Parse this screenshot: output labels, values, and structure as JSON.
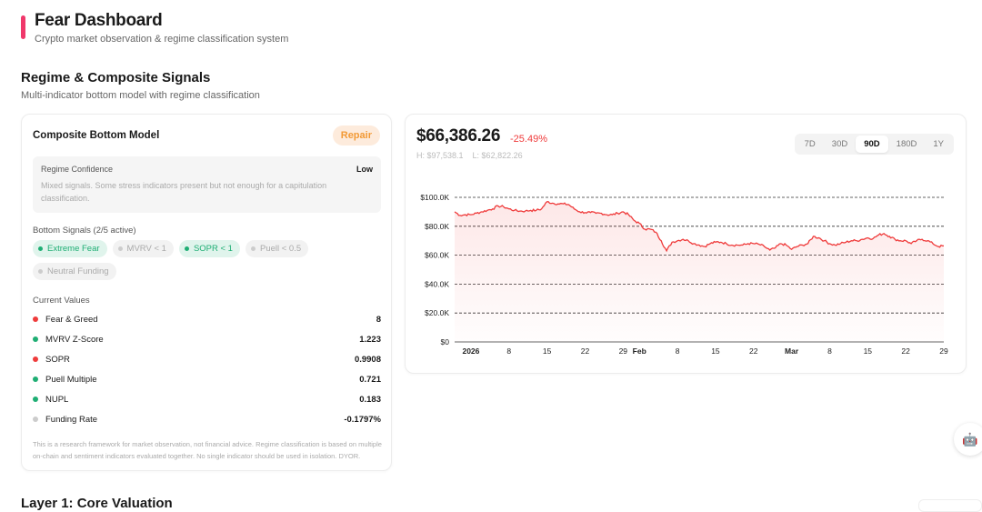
{
  "header": {
    "title": "Fear Dashboard",
    "subtitle": "Crypto market observation & regime classification system",
    "accent": "#f0386b"
  },
  "section": {
    "title": "Regime & Composite Signals",
    "subtitle": "Multi-indicator bottom model with regime classification"
  },
  "model": {
    "title": "Composite Bottom Model",
    "regime": "Repair",
    "confidence_label": "Regime Confidence",
    "confidence_value": "Low",
    "confidence_desc": "Mixed signals. Some stress indicators present but not enough for a capitulation classification.",
    "signals_label": "Bottom Signals (2/5 active)",
    "signals": [
      {
        "label": "Extreme Fear",
        "active": true
      },
      {
        "label": "MVRV < 1",
        "active": false
      },
      {
        "label": "SOPR < 1",
        "active": true
      },
      {
        "label": "Puell < 0.5",
        "active": false
      },
      {
        "label": "Neutral Funding",
        "active": false
      }
    ],
    "values_label": "Current Values",
    "values": [
      {
        "name": "Fear & Greed",
        "value": "8",
        "color": "#ef3b3b"
      },
      {
        "name": "MVRV Z-Score",
        "value": "1.223",
        "color": "#1fae74"
      },
      {
        "name": "SOPR",
        "value": "0.9908",
        "color": "#ef3b3b"
      },
      {
        "name": "Puell Multiple",
        "value": "0.721",
        "color": "#1fae74"
      },
      {
        "name": "NUPL",
        "value": "0.183",
        "color": "#1fae74"
      },
      {
        "name": "Funding Rate",
        "value": "-0.1797%",
        "color": "#cccccc"
      }
    ],
    "disclaimer": "This is a research framework for market observation, not financial advice. Regime classification is based on multiple on-chain and sentiment indicators evaluated together. No single indicator should be used in isolation. DYOR."
  },
  "price": {
    "current": "$66,386.26",
    "change": "-25.49%",
    "high": "H: $97,538.1",
    "low": "L: $62,822.26",
    "ranges": [
      "7D",
      "30D",
      "90D",
      "180D",
      "1Y"
    ],
    "active_range": "90D"
  },
  "chart_data": {
    "type": "area",
    "line_color": "#ef3b3b",
    "grid": "horizontal dashed",
    "ylim": [
      0,
      100
    ],
    "y_ticks": [
      "$0",
      "$20.0K",
      "$40.0K",
      "$60.0K",
      "$80.0K",
      "$100.0K"
    ],
    "x_ticks": [
      {
        "date": "2026-01-01",
        "label": "2026",
        "bold": true
      },
      {
        "date": "2026-01-08",
        "label": "8"
      },
      {
        "date": "2026-01-15",
        "label": "15"
      },
      {
        "date": "2026-01-22",
        "label": "22"
      },
      {
        "date": "2026-01-29",
        "label": "29"
      },
      {
        "date": "2026-02-01",
        "label": "Feb",
        "bold": true
      },
      {
        "date": "2026-02-08",
        "label": "8"
      },
      {
        "date": "2026-02-15",
        "label": "15"
      },
      {
        "date": "2026-02-22",
        "label": "22"
      },
      {
        "date": "2026-03-01",
        "label": "Mar",
        "bold": true
      },
      {
        "date": "2026-03-08",
        "label": "8"
      },
      {
        "date": "2026-03-15",
        "label": "15"
      },
      {
        "date": "2026-03-22",
        "label": "22"
      },
      {
        "date": "2026-03-29",
        "label": "29"
      }
    ],
    "series": [
      {
        "values_unit": "thousand USD",
        "points": [
          [
            "2025-12-29",
            90
          ],
          [
            "2025-12-30",
            87.5
          ],
          [
            "2025-12-31",
            88
          ],
          [
            "2026-01-01",
            88
          ],
          [
            "2026-01-02",
            89
          ],
          [
            "2026-01-03",
            90
          ],
          [
            "2026-01-04",
            91
          ],
          [
            "2026-01-05",
            92
          ],
          [
            "2026-01-06",
            94
          ],
          [
            "2026-01-07",
            93.5
          ],
          [
            "2026-01-08",
            92
          ],
          [
            "2026-01-09",
            91
          ],
          [
            "2026-01-10",
            90.5
          ],
          [
            "2026-01-11",
            90.5
          ],
          [
            "2026-01-12",
            91
          ],
          [
            "2026-01-13",
            91
          ],
          [
            "2026-01-14",
            92
          ],
          [
            "2026-01-15",
            97
          ],
          [
            "2026-01-16",
            96
          ],
          [
            "2026-01-17",
            95.5
          ],
          [
            "2026-01-18",
            95.5
          ],
          [
            "2026-01-19",
            95
          ],
          [
            "2026-01-20",
            92
          ],
          [
            "2026-01-21",
            90
          ],
          [
            "2026-01-22",
            89.5
          ],
          [
            "2026-01-23",
            89.5
          ],
          [
            "2026-01-24",
            89
          ],
          [
            "2026-01-25",
            89
          ],
          [
            "2026-01-26",
            88
          ],
          [
            "2026-01-27",
            88
          ],
          [
            "2026-01-28",
            89
          ],
          [
            "2026-01-29",
            90
          ],
          [
            "2026-01-30",
            88
          ],
          [
            "2026-01-31",
            84
          ],
          [
            "2026-02-01",
            82
          ],
          [
            "2026-02-02",
            78
          ],
          [
            "2026-02-03",
            78
          ],
          [
            "2026-02-04",
            76
          ],
          [
            "2026-02-05",
            70
          ],
          [
            "2026-02-06",
            63
          ],
          [
            "2026-02-07",
            69
          ],
          [
            "2026-02-08",
            70
          ],
          [
            "2026-02-09",
            71
          ],
          [
            "2026-02-10",
            70
          ],
          [
            "2026-02-11",
            68
          ],
          [
            "2026-02-12",
            67
          ],
          [
            "2026-02-13",
            66
          ],
          [
            "2026-02-14",
            68
          ],
          [
            "2026-02-15",
            69
          ],
          [
            "2026-02-16",
            69
          ],
          [
            "2026-02-17",
            68
          ],
          [
            "2026-02-18",
            67
          ],
          [
            "2026-02-19",
            67
          ],
          [
            "2026-02-20",
            67
          ],
          [
            "2026-02-21",
            68
          ],
          [
            "2026-02-22",
            68
          ],
          [
            "2026-02-23",
            67.5
          ],
          [
            "2026-02-24",
            66
          ],
          [
            "2026-02-25",
            63.5
          ],
          [
            "2026-02-26",
            65
          ],
          [
            "2026-02-27",
            68
          ],
          [
            "2026-02-28",
            67
          ],
          [
            "2026-03-01",
            64
          ],
          [
            "2026-03-02",
            66
          ],
          [
            "2026-03-03",
            67
          ],
          [
            "2026-03-04",
            68
          ],
          [
            "2026-03-05",
            73
          ],
          [
            "2026-03-06",
            72
          ],
          [
            "2026-03-07",
            70
          ],
          [
            "2026-03-08",
            68
          ],
          [
            "2026-03-09",
            67
          ],
          [
            "2026-03-10",
            68
          ],
          [
            "2026-03-11",
            69
          ],
          [
            "2026-03-12",
            70
          ],
          [
            "2026-03-13",
            70
          ],
          [
            "2026-03-14",
            71
          ],
          [
            "2026-03-15",
            72
          ],
          [
            "2026-03-16",
            71.5
          ],
          [
            "2026-03-17",
            74
          ],
          [
            "2026-03-18",
            75
          ],
          [
            "2026-03-19",
            73
          ],
          [
            "2026-03-20",
            71
          ],
          [
            "2026-03-21",
            70
          ],
          [
            "2026-03-22",
            70
          ],
          [
            "2026-03-23",
            68
          ],
          [
            "2026-03-24",
            70
          ],
          [
            "2026-03-25",
            71
          ],
          [
            "2026-03-26",
            70
          ],
          [
            "2026-03-27",
            68
          ],
          [
            "2026-03-28",
            66
          ],
          [
            "2026-03-29",
            66.4
          ]
        ]
      }
    ]
  },
  "next_section": {
    "title": "Layer 1: Core Valuation"
  }
}
